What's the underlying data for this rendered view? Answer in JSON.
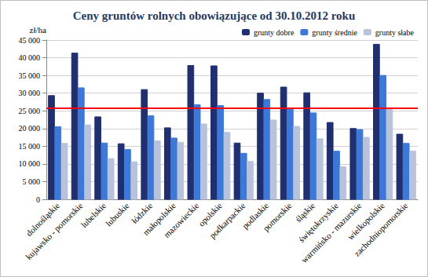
{
  "chart_data": {
    "type": "bar",
    "title": "Ceny gruntów rolnych obowiązujące od 30.10.2012 roku",
    "y_label": "zł/ha",
    "categories": [
      "dolnośląskie",
      "kujawsko - pomorskie",
      "lubelskie",
      "lubuskie",
      "łódzkie",
      "małopolskie",
      "mazowieckie",
      "opolskie",
      "podkarpackie",
      "podlaskie",
      "pomorskie",
      "śląskie",
      "świętokrzyskie",
      "warmińsko - mazurskie",
      "wielkopolskie",
      "zachodniopomorskie"
    ],
    "series": [
      {
        "name": "grunty dobre",
        "color": "#1f2f6f",
        "values": [
          29300,
          41300,
          23300,
          15700,
          31000,
          20200,
          37800,
          37700,
          15900,
          30000,
          31700,
          30100,
          21700,
          20000,
          43800,
          18400
        ]
      },
      {
        "name": "grunty średnie",
        "color": "#3c78d8",
        "values": [
          20500,
          31500,
          15900,
          14100,
          23600,
          17300,
          26700,
          26500,
          13000,
          28200,
          25600,
          24400,
          13600,
          19700,
          35000,
          15800
        ]
      },
      {
        "name": "grunty słabe",
        "color": "#b8c2db",
        "values": [
          15800,
          21000,
          11500,
          10600,
          16500,
          16100,
          21300,
          18900,
          10700,
          22400,
          20600,
          17100,
          9200,
          17500,
          25600,
          13600
        ]
      }
    ],
    "reference_line": 25800,
    "ylim": [
      0,
      45000
    ],
    "yticks": [
      0,
      {
        "value": 5000,
        "label": "5 000"
      },
      {
        "value": 10000,
        "label": "10 000"
      },
      {
        "value": 15000,
        "label": "15 000"
      },
      {
        "value": 20000,
        "label": "20 000"
      },
      {
        "value": 25000,
        "label": "25 000"
      },
      {
        "value": 30000,
        "label": "30 000"
      },
      {
        "value": 35000,
        "label": "35 000"
      },
      {
        "value": 40000,
        "label": "40 000"
      },
      {
        "value": 45000,
        "label": "45 000"
      }
    ],
    "grid": true,
    "legend": "top-right"
  }
}
